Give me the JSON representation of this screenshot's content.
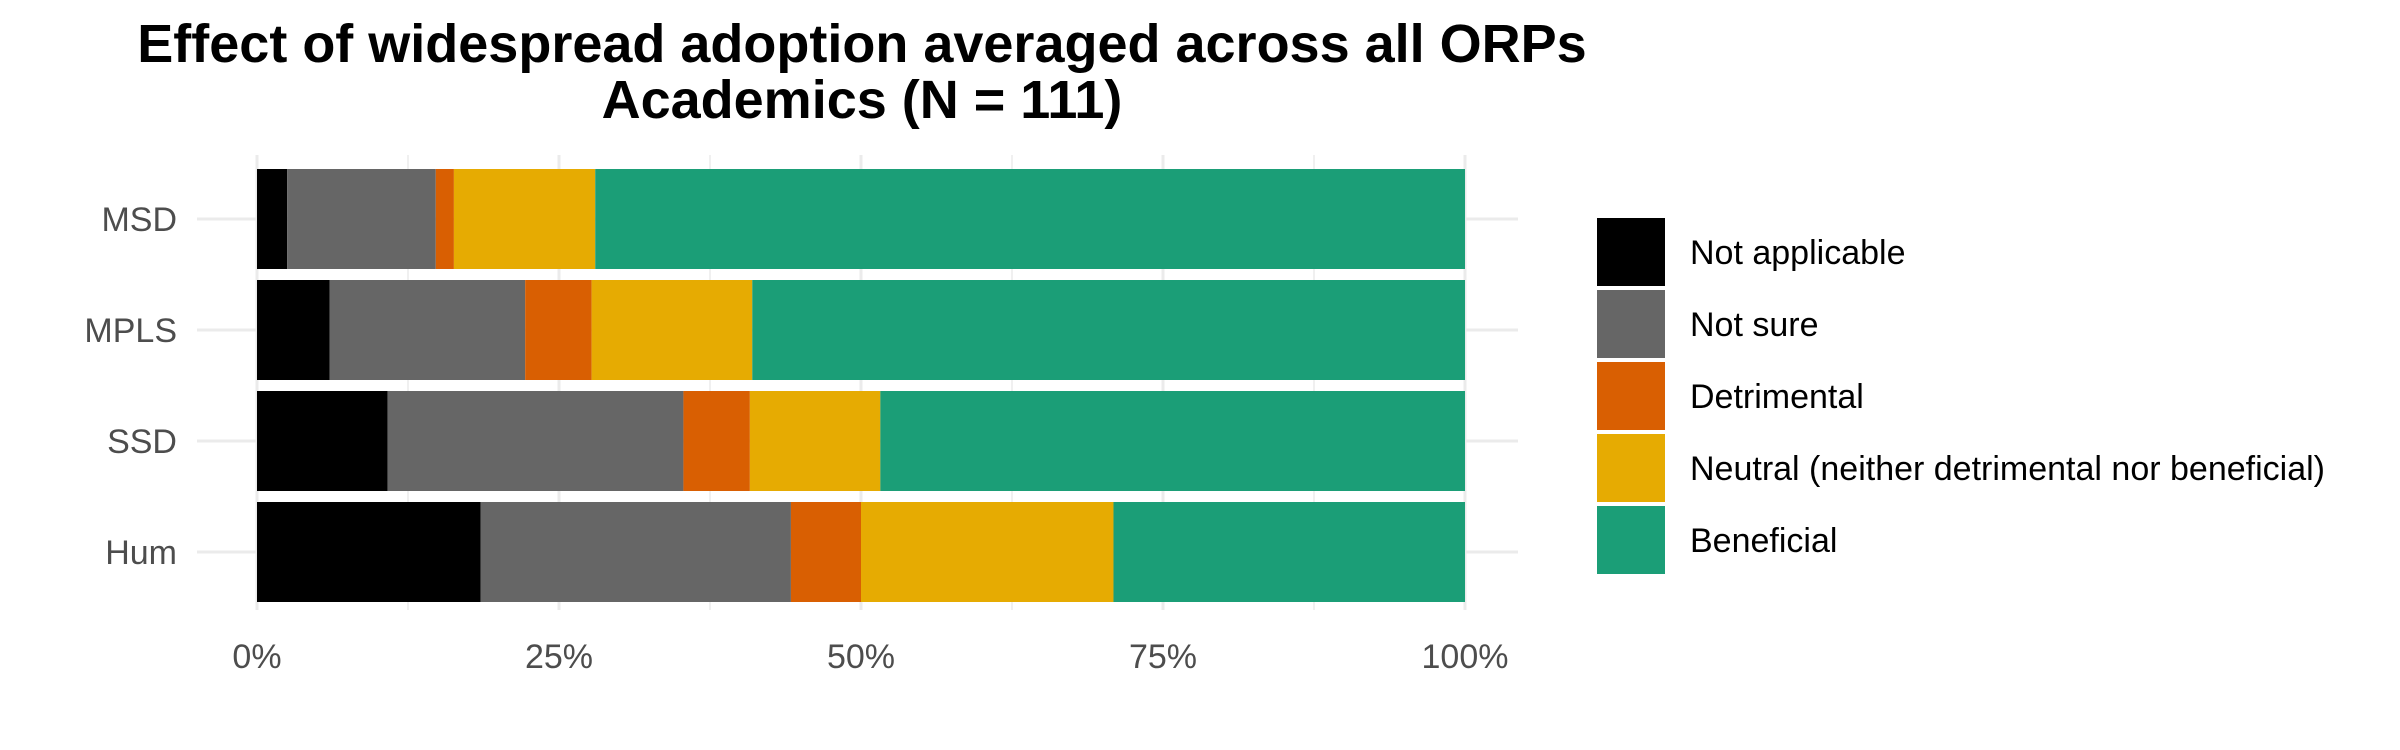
{
  "chart_data": {
    "type": "bar",
    "orientation": "horizontal",
    "stacked": true,
    "title": "Effect of widespread adoption averaged across all ORPs",
    "subtitle": "Academics (N = 111)",
    "xlabel": "",
    "ylabel": "",
    "xlim": [
      0,
      1
    ],
    "x_ticks": [
      "0%",
      "25%",
      "50%",
      "75%",
      "100%"
    ],
    "x_tick_values": [
      0,
      0.25,
      0.5,
      0.75,
      1.0
    ],
    "grid": true,
    "legend_position": "right",
    "categories": [
      "MSD",
      "MPLS",
      "SSD",
      "Hum"
    ],
    "series": [
      {
        "name": "Not applicable",
        "color": "#000000",
        "values": [
          0.025,
          0.06,
          0.108,
          0.185
        ]
      },
      {
        "name": "Not sure",
        "color": "#666666",
        "values": [
          0.123,
          0.162,
          0.245,
          0.257
        ]
      },
      {
        "name": "Detrimental",
        "color": "#D95F02",
        "values": [
          0.015,
          0.055,
          0.055,
          0.058
        ]
      },
      {
        "name": "Neutral (neither detrimental nor beneficial)",
        "color": "#E6AB02",
        "values": [
          0.117,
          0.133,
          0.108,
          0.209
        ]
      },
      {
        "name": "Beneficial",
        "color": "#1B9E77",
        "values": [
          0.72,
          0.59,
          0.484,
          0.291
        ]
      }
    ]
  }
}
